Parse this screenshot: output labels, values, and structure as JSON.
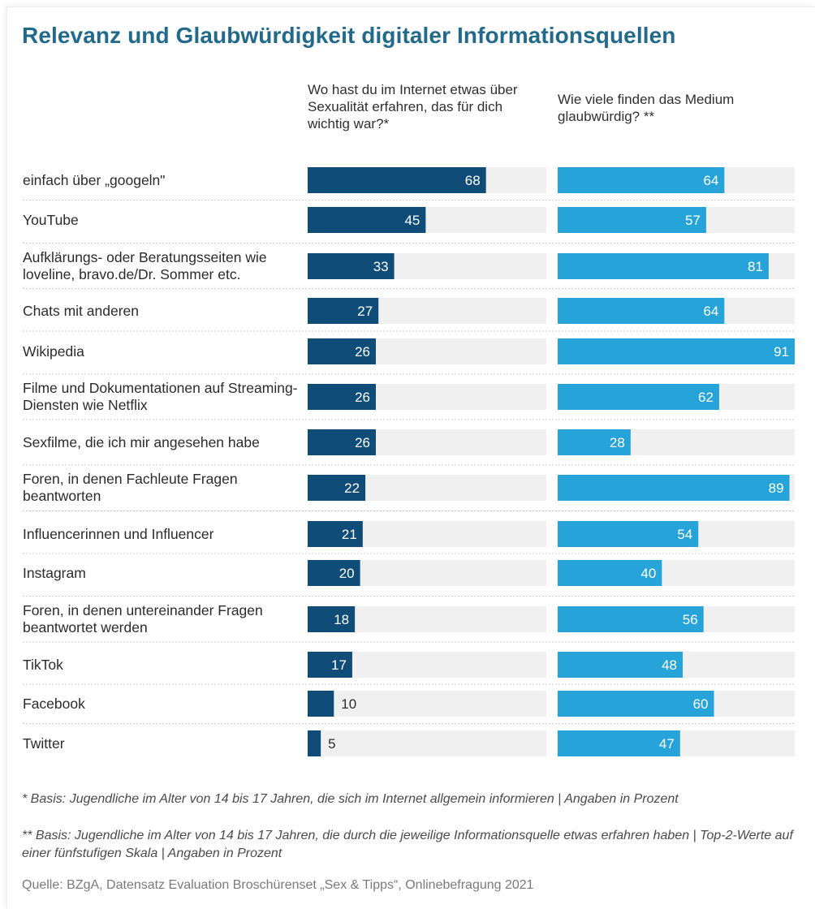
{
  "title": "Relevanz und Glaubwürdigkeit digitaler Informationsquellen",
  "columns": {
    "left": "Wo hast du im Internet etwas über Sexualität erfahren, das für dich wichtig war?*",
    "right": "Wie viele finden das Medium glaubwürdig? **"
  },
  "footnotes": {
    "fn1": "* Basis: Jugendliche im Alter von 14 bis 17 Jahren, die sich im Internet allgemein informieren | Angaben in Prozent",
    "fn2": "** Basis: Jugendliche im Alter von 14 bis 17 Jahren, die durch die jeweilige Informationsquelle etwas erfahren haben | Top-2-Werte auf einer fünfstufigen Skala | Angaben in Prozent"
  },
  "source": "Quelle: BZgA, Datensatz Evaluation Broschürenset „Sex & Tipps“, Onlinebefragung 2021",
  "colors": {
    "title": "#22698a",
    "left_bar": "#0f4d78",
    "right_bar": "#26a3d8",
    "track": "#f0f0f0"
  },
  "chart_data": {
    "type": "bar",
    "orientation": "horizontal",
    "categories": [
      "einfach über „googeln\"",
      "YouTube",
      "Aufklärungs- oder Beratungsseiten wie loveline, bravo.de/Dr. Sommer etc.",
      "Chats mit anderen",
      "Wikipedia",
      "Filme und Dokumentationen auf Streaming-Diensten wie Netflix",
      "Sexfilme, die ich mir angesehen habe",
      "Foren, in denen Fachleute Fragen beantworten",
      "Influencerinnen und Influencer",
      "Instagram",
      "Foren, in denen untereinander Fragen beantwortet werden",
      "TikTok",
      "Facebook",
      "Twitter"
    ],
    "series": [
      {
        "name": "Wo hast du im Internet etwas über Sexualität erfahren, das für dich wichtig war?*",
        "values": [
          68,
          45,
          33,
          27,
          26,
          26,
          26,
          22,
          21,
          20,
          18,
          17,
          10,
          5
        ]
      },
      {
        "name": "Wie viele finden das Medium glaubwürdig? **",
        "values": [
          64,
          57,
          81,
          64,
          91,
          62,
          28,
          89,
          54,
          40,
          56,
          48,
          60,
          47
        ]
      }
    ],
    "xlim": [
      0,
      91
    ],
    "grid": false,
    "legend": "none"
  }
}
